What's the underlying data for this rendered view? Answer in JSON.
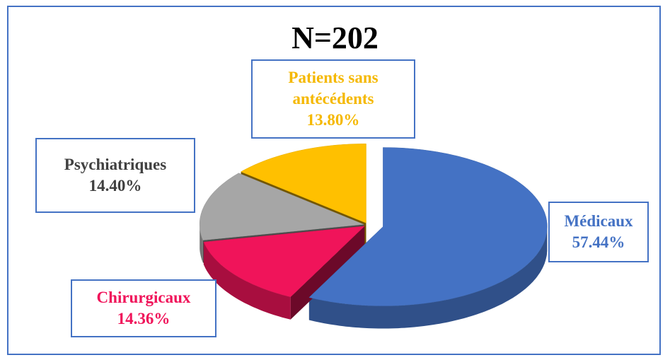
{
  "chart_data": {
    "type": "pie",
    "title": "N=202",
    "categories": [
      "Médicaux",
      "Chirurgicaux",
      "Psychiatriques",
      "Patients sans antécédents"
    ],
    "values": [
      57.44,
      14.36,
      14.4,
      13.8
    ],
    "value_labels": [
      "57.44%",
      "14.36%",
      "14.40%",
      "13.80%"
    ],
    "colors": [
      "#4472c4",
      "#f0145a",
      "#a6a6a6",
      "#ffc000"
    ],
    "label_colors": [
      "#4472c4",
      "#f0145a",
      "#404040",
      "#f5b800"
    ]
  }
}
